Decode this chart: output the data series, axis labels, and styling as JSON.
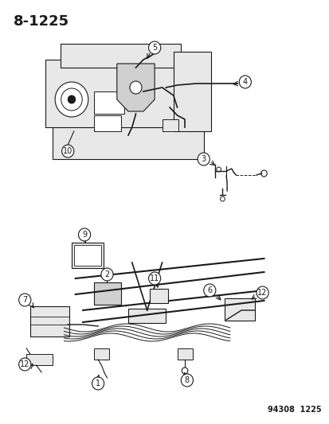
{
  "title": "8-1225",
  "footer": "94308  1225",
  "bg_color": "#ffffff",
  "title_fontsize": 13,
  "footer_fontsize": 7,
  "callout_numbers": [
    1,
    2,
    3,
    4,
    5,
    6,
    7,
    8,
    9,
    10,
    11,
    12
  ],
  "callout_font": 7,
  "line_color": "#1a1a1a",
  "fill_color": "#d0d0d0",
  "light_fill": "#e8e8e8"
}
